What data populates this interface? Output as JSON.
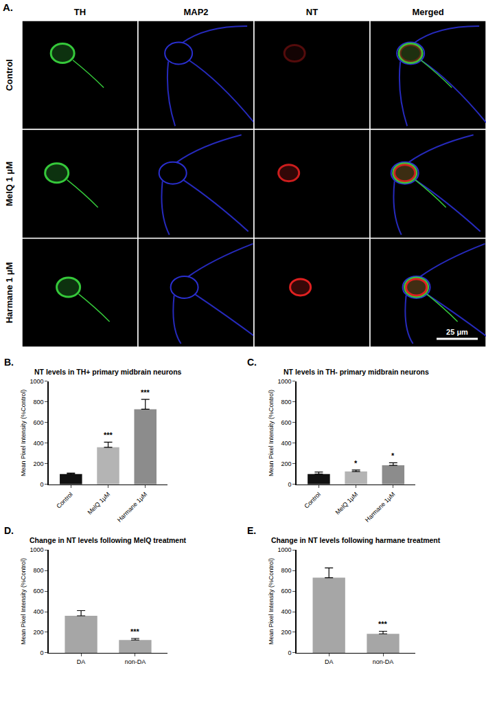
{
  "panel_a": {
    "label": "A.",
    "columns": [
      "TH",
      "MAP2",
      "NT",
      "Merged"
    ],
    "rows": [
      "Control",
      "MelQ 1 μM",
      "Harmane 1 μM"
    ],
    "scale_bar": "25 μm"
  },
  "chart_data": [
    {
      "type": "bar",
      "label": "B.",
      "title": "NT levels in TH+ primary midbrain neurons",
      "categories": [
        "Control",
        "MelQ 1μM",
        "Harmane 1μM"
      ],
      "values": [
        100,
        360,
        730
      ],
      "errors": [
        10,
        50,
        95
      ],
      "colors": [
        "#111111",
        "#b4b4b4",
        "#8c8c8c"
      ],
      "y_label": "Mean Pixel Intensity (%Control)",
      "ylim": [
        0,
        1000
      ],
      "yticks": [
        0,
        200,
        400,
        600,
        800,
        1000
      ],
      "annotations": [
        {
          "category": "MelQ 1μM",
          "text": "***"
        },
        {
          "category": "Harmane 1μM",
          "text": "***"
        }
      ]
    },
    {
      "type": "bar",
      "label": "C.",
      "title": "NT levels in TH- primary midbrain neurons",
      "categories": [
        "Control",
        "MelQ 1μM",
        "Harmane 1μM"
      ],
      "values": [
        100,
        125,
        185
      ],
      "errors": [
        20,
        15,
        25
      ],
      "colors": [
        "#111111",
        "#b4b4b4",
        "#8c8c8c"
      ],
      "y_label": "Mean Pixel Intensity (%Control)",
      "ylim": [
        0,
        1000
      ],
      "yticks": [
        0,
        200,
        400,
        600,
        800,
        1000
      ],
      "annotations": [
        {
          "category": "MelQ 1μM",
          "text": "*"
        },
        {
          "category": "Harmane 1μM",
          "text": "*"
        }
      ]
    },
    {
      "type": "bar",
      "label": "D.",
      "title": "Change in NT levels following MelQ treatment",
      "categories": [
        "DA",
        "non-DA"
      ],
      "values": [
        360,
        125
      ],
      "errors": [
        50,
        15
      ],
      "colors": [
        "#a6a6a6",
        "#a6a6a6"
      ],
      "y_label": "Mean Pixel Intensity (%Control)",
      "ylim": [
        0,
        1000
      ],
      "yticks": [
        0,
        200,
        400,
        600,
        800,
        1000
      ],
      "annotations": [
        {
          "category": "non-DA",
          "text": "***"
        }
      ]
    },
    {
      "type": "bar",
      "label": "E.",
      "title": "Change in NT levels following harmane treatment",
      "categories": [
        "DA",
        "non-DA"
      ],
      "values": [
        730,
        185
      ],
      "errors": [
        95,
        25
      ],
      "colors": [
        "#a6a6a6",
        "#a6a6a6"
      ],
      "y_label": "Mean Pixel Intensity (%Control)",
      "ylim": [
        0,
        1000
      ],
      "yticks": [
        0,
        200,
        400,
        600,
        800,
        1000
      ],
      "annotations": [
        {
          "category": "non-DA",
          "text": "***"
        }
      ]
    }
  ]
}
